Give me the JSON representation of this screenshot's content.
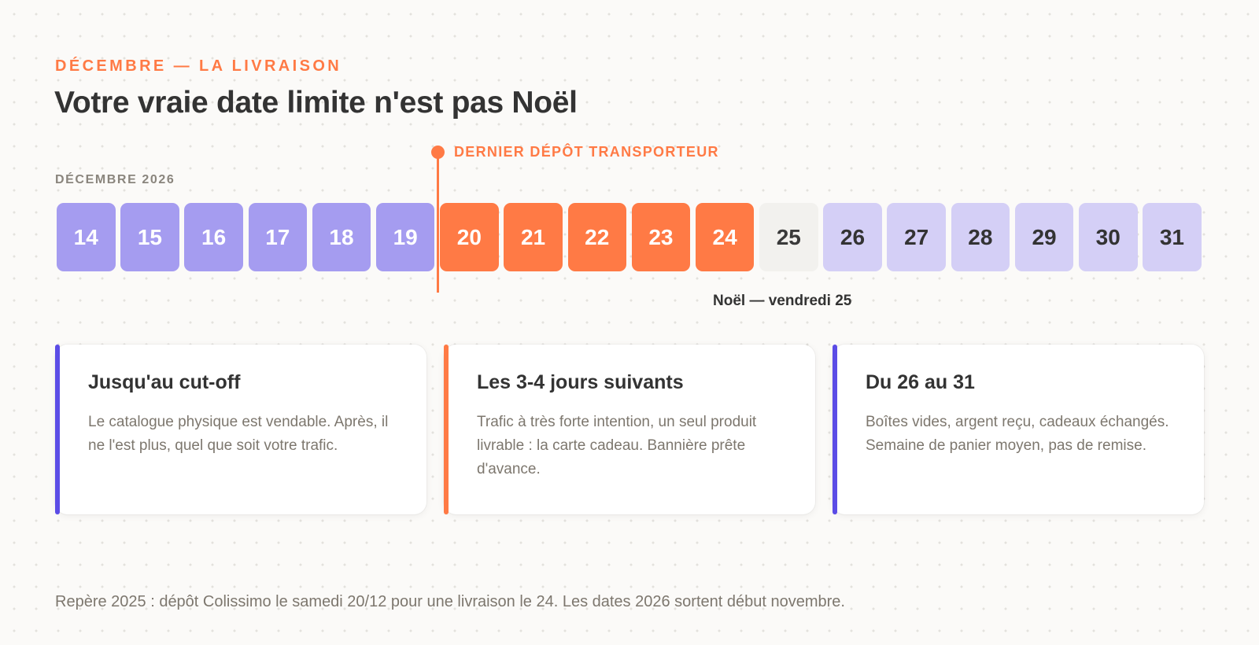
{
  "header": {
    "eyebrow": "DÉCEMBRE — LA LIVRAISON",
    "title": "Votre vraie date limite n'est pas Noël"
  },
  "timeline": {
    "month_label": "DÉCEMBRE 2026",
    "cutoff_label": "DERNIER DÉPÔT TRANSPORTEUR",
    "noel_label": "Noël — vendredi 25",
    "days": [
      {
        "num": "14",
        "phase": "before"
      },
      {
        "num": "15",
        "phase": "before"
      },
      {
        "num": "16",
        "phase": "before"
      },
      {
        "num": "17",
        "phase": "before"
      },
      {
        "num": "18",
        "phase": "before"
      },
      {
        "num": "19",
        "phase": "before"
      },
      {
        "num": "20",
        "phase": "after"
      },
      {
        "num": "21",
        "phase": "after"
      },
      {
        "num": "22",
        "phase": "after"
      },
      {
        "num": "23",
        "phase": "after"
      },
      {
        "num": "24",
        "phase": "after"
      },
      {
        "num": "25",
        "phase": "xmas"
      },
      {
        "num": "26",
        "phase": "post"
      },
      {
        "num": "27",
        "phase": "post"
      },
      {
        "num": "28",
        "phase": "post"
      },
      {
        "num": "29",
        "phase": "post"
      },
      {
        "num": "30",
        "phase": "post"
      },
      {
        "num": "31",
        "phase": "post"
      }
    ]
  },
  "cards": [
    {
      "title": "Jusqu'au cut-off",
      "text": "Le catalogue physique est vendable. Après, il ne l'est plus, quel que soit votre trafic.",
      "accent": "#5b4ce6"
    },
    {
      "title": "Les 3-4 jours suivants",
      "text": "Trafic à très forte intention, un seul produit livrable : la carte cadeau. Bannière prête d'avance.",
      "accent": "#ff7a45"
    },
    {
      "title": "Du 26 au 31",
      "text": "Boîtes vides, argent reçu, cadeaux échangés. Semaine de panier moyen, pas de remise.",
      "accent": "#5b4ce6"
    }
  ],
  "footer": "Repère 2025 : dépôt Colissimo le samedi 20/12 pour une livraison le 24. Les dates 2026 sortent début novembre.",
  "colors": {
    "before": "#a59cf0",
    "after": "#ff7a45",
    "xmas": "#f2f1ee",
    "post": "#d4cff6"
  }
}
